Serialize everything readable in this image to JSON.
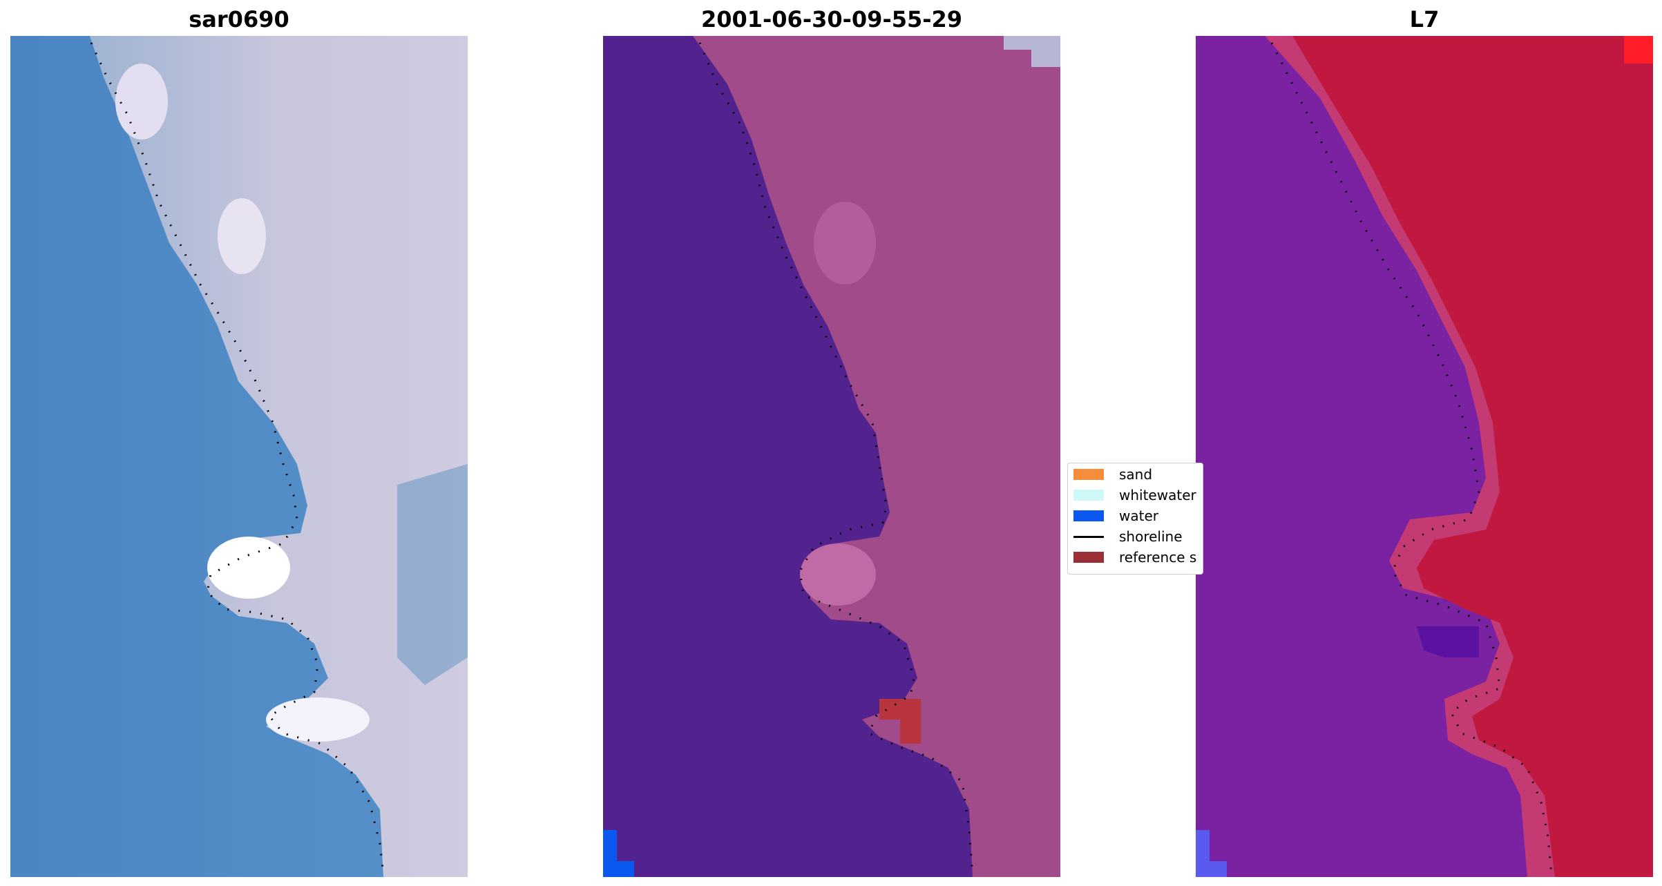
{
  "panels": [
    {
      "title": "sar0690"
    },
    {
      "title": "2001-06-30-09-55-29"
    },
    {
      "title": "L7"
    }
  ],
  "legend": {
    "items": [
      {
        "label": "sand",
        "color": "#f58d3a"
      },
      {
        "label": "whitewater",
        "color": "#ccf9f7"
      },
      {
        "label": "water",
        "color": "#0a58f0"
      },
      {
        "label": "shoreline",
        "color": "#000000"
      },
      {
        "label": "reference s",
        "color": "#9b2f35"
      }
    ]
  },
  "colors": {
    "ocean": "#4f8bc6",
    "land_rgb": "#c9c3da",
    "class_water": "#52228f",
    "class_land": "#a24b8a",
    "class_water_pixel": "#0a58f0",
    "index_water": "#7a22a2",
    "index_land": "#c0183f"
  }
}
